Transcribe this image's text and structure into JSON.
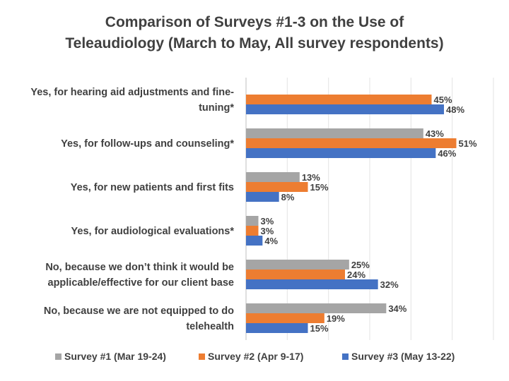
{
  "chart_data": {
    "type": "bar",
    "orientation": "horizontal",
    "title": "Comparison of Surveys #1-3 on the Use of Teleaudiology (March to May, All survey respondents)",
    "title_lines": [
      "Comparison of Surveys #1-3 on the Use of",
      "Teleaudiology (March to May, All survey respondents)"
    ],
    "categories": [
      [
        "Yes, for hearing aid adjustments and fine-",
        "tuning*"
      ],
      [
        "Yes, for follow-ups and counseling*"
      ],
      [
        "Yes, for new patients and first fits"
      ],
      [
        "Yes, for audiological evaluations*"
      ],
      [
        "No, because we don’t think it would be",
        "applicable/effective for our client base"
      ],
      [
        "No, because we are not equipped to do",
        "telehealth"
      ]
    ],
    "series": [
      {
        "name": "Survey #1 (Mar 19-24)",
        "color": "#a5a5a5",
        "values": [
          null,
          43,
          13,
          3,
          25,
          34
        ]
      },
      {
        "name": "Survey #2 (Apr 9-17)",
        "color": "#ed7d31",
        "values": [
          45,
          51,
          15,
          3,
          24,
          19
        ]
      },
      {
        "name": "Survey #3 (May 13-22)",
        "color": "#4472c4",
        "values": [
          48,
          46,
          8,
          4,
          32,
          15
        ]
      }
    ],
    "value_suffix": "%",
    "xlim": [
      0,
      60
    ],
    "grid": true,
    "legend": "bottom",
    "xlabel": "",
    "ylabel": ""
  }
}
